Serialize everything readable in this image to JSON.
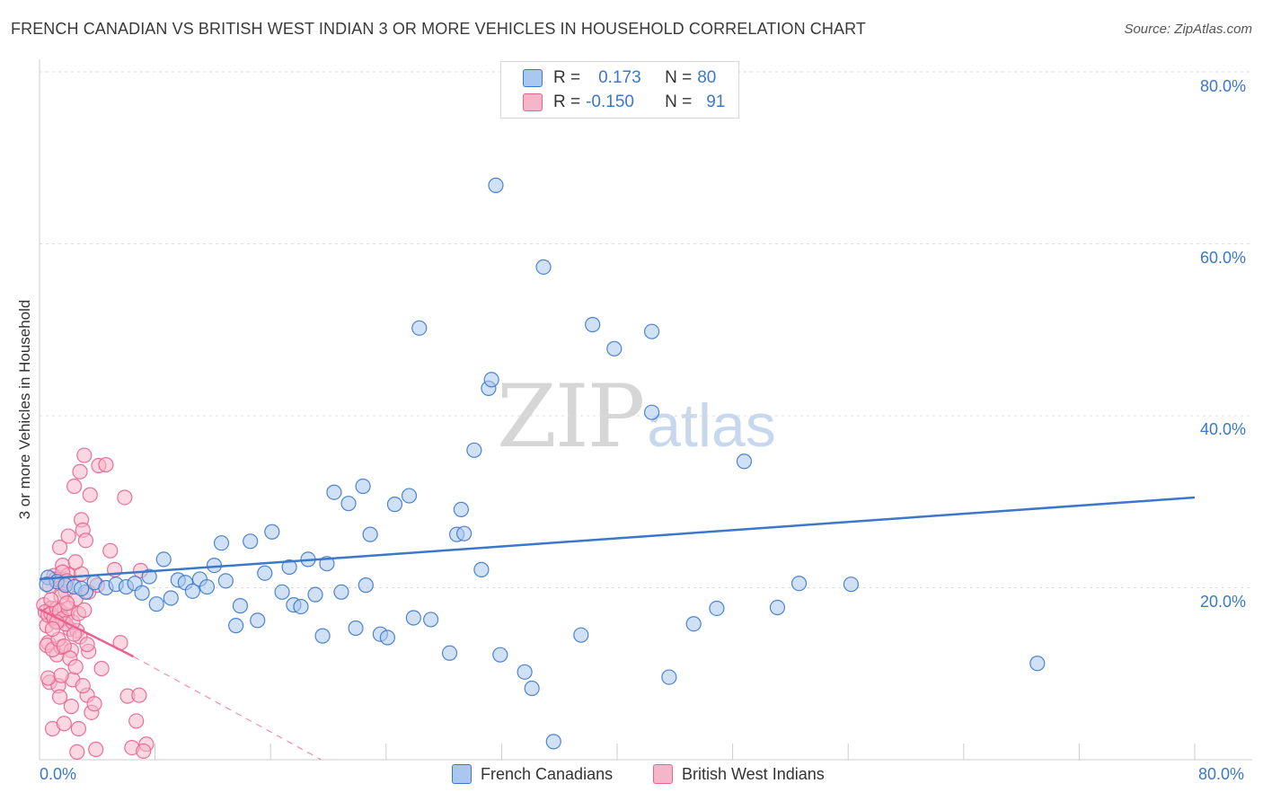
{
  "title": "FRENCH CANADIAN VS BRITISH WEST INDIAN 3 OR MORE VEHICLES IN HOUSEHOLD CORRELATION CHART",
  "source": "Source: ZipAtlas.com",
  "watermark": {
    "zip": "ZIP",
    "atlas": "atlas"
  },
  "colors": {
    "blue": "#3b78c9",
    "blue_fill": "#aac8ef",
    "pink": "#e8628f",
    "pink_fill": "#f6b6c9",
    "grid": "#dddddd"
  },
  "legend": {
    "rows": [
      {
        "r_label": "R =",
        "r_value": "0.173",
        "n_label": "N =",
        "n_value": "80"
      },
      {
        "r_label": "R =",
        "r_value": "-0.150",
        "n_label": "N =",
        "n_value": "91"
      }
    ]
  },
  "bottom_legend": {
    "series1": "French Canadians",
    "series2": "British West Indians"
  },
  "chart_data": {
    "type": "scatter",
    "title": "FRENCH CANADIAN VS BRITISH WEST INDIAN 3 OR MORE VEHICLES IN HOUSEHOLD CORRELATION CHART",
    "xlabel": "",
    "ylabel": "3 or more Vehicles in Household",
    "xlim": [
      0,
      80
    ],
    "ylim": [
      0,
      80
    ],
    "x_tick_labels": [
      "0.0%",
      "80.0%"
    ],
    "y_tick_labels": [
      "20.0%",
      "40.0%",
      "60.0%",
      "80.0%"
    ],
    "y_ticks": [
      20,
      40,
      60,
      80
    ],
    "series": [
      {
        "name": "French Canadians",
        "r": 0.173,
        "n": 80,
        "trend": {
          "x": [
            0,
            80
          ],
          "y": [
            21.0,
            30.5
          ],
          "style": "solid"
        },
        "points": [
          [
            0.6,
            21.2
          ],
          [
            1.2,
            20.7
          ],
          [
            1.8,
            20.3
          ],
          [
            2.4,
            20.1
          ],
          [
            3.2,
            19.5
          ],
          [
            3.8,
            20.6
          ],
          [
            4.6,
            20.0
          ],
          [
            5.3,
            20.4
          ],
          [
            6.0,
            20.1
          ],
          [
            6.6,
            20.5
          ],
          [
            7.1,
            19.4
          ],
          [
            7.6,
            21.3
          ],
          [
            8.1,
            18.1
          ],
          [
            8.6,
            23.3
          ],
          [
            9.1,
            18.8
          ],
          [
            9.6,
            20.9
          ],
          [
            10.1,
            20.6
          ],
          [
            10.6,
            19.6
          ],
          [
            11.1,
            21.0
          ],
          [
            11.6,
            20.1
          ],
          [
            12.1,
            22.6
          ],
          [
            12.6,
            25.2
          ],
          [
            12.9,
            20.8
          ],
          [
            13.6,
            15.6
          ],
          [
            13.9,
            17.9
          ],
          [
            14.6,
            25.4
          ],
          [
            15.1,
            16.2
          ],
          [
            15.6,
            21.7
          ],
          [
            16.1,
            26.5
          ],
          [
            16.8,
            19.5
          ],
          [
            17.3,
            22.4
          ],
          [
            17.6,
            18.0
          ],
          [
            18.1,
            17.8
          ],
          [
            18.6,
            23.3
          ],
          [
            19.1,
            19.2
          ],
          [
            19.6,
            14.4
          ],
          [
            19.9,
            22.8
          ],
          [
            20.4,
            31.1
          ],
          [
            20.9,
            19.5
          ],
          [
            21.4,
            29.8
          ],
          [
            21.9,
            15.3
          ],
          [
            22.4,
            31.8
          ],
          [
            22.6,
            20.3
          ],
          [
            22.9,
            26.2
          ],
          [
            23.6,
            14.6
          ],
          [
            24.1,
            14.2
          ],
          [
            24.6,
            29.7
          ],
          [
            25.6,
            30.7
          ],
          [
            25.9,
            16.5
          ],
          [
            26.3,
            50.2
          ],
          [
            27.1,
            16.3
          ],
          [
            28.4,
            12.4
          ],
          [
            28.9,
            26.2
          ],
          [
            29.2,
            29.1
          ],
          [
            29.4,
            26.3
          ],
          [
            30.1,
            36.0
          ],
          [
            30.6,
            22.1
          ],
          [
            31.1,
            43.2
          ],
          [
            31.3,
            44.2
          ],
          [
            31.6,
            66.8
          ],
          [
            31.9,
            12.2
          ],
          [
            33.6,
            10.2
          ],
          [
            34.1,
            8.3
          ],
          [
            34.9,
            57.3
          ],
          [
            35.6,
            2.1
          ],
          [
            37.5,
            14.5
          ],
          [
            38.3,
            50.6
          ],
          [
            39.8,
            47.8
          ],
          [
            42.4,
            40.4
          ],
          [
            42.4,
            49.8
          ],
          [
            43.6,
            9.6
          ],
          [
            45.3,
            15.8
          ],
          [
            46.9,
            17.6
          ],
          [
            48.8,
            34.7
          ],
          [
            51.1,
            17.7
          ],
          [
            52.6,
            20.5
          ],
          [
            56.2,
            20.4
          ],
          [
            69.1,
            11.2
          ],
          [
            0.5,
            20.4
          ],
          [
            2.9,
            19.9
          ]
        ]
      },
      {
        "name": "British West Indians",
        "r": -0.15,
        "n": 91,
        "trend": {
          "x": [
            0,
            6.5
          ],
          "y": [
            17.5,
            12.0
          ],
          "style": "solid",
          "extension": {
            "x": [
              6.5,
              19.5
            ],
            "y": [
              12.0,
              0.0
            ],
            "style": "dashed"
          }
        },
        "points": [
          [
            0.3,
            18.0
          ],
          [
            0.5,
            15.6
          ],
          [
            0.6,
            13.6
          ],
          [
            0.7,
            9.0
          ],
          [
            0.8,
            17.6
          ],
          [
            0.9,
            3.6
          ],
          [
            1.0,
            21.4
          ],
          [
            1.1,
            16.1
          ],
          [
            1.2,
            12.2
          ],
          [
            1.3,
            8.6
          ],
          [
            1.4,
            24.7
          ],
          [
            1.5,
            13.1
          ],
          [
            1.6,
            22.6
          ],
          [
            1.7,
            20.5
          ],
          [
            1.8,
            19.5
          ],
          [
            1.9,
            16.8
          ],
          [
            2.0,
            21.5
          ],
          [
            2.1,
            15.2
          ],
          [
            2.2,
            12.7
          ],
          [
            2.3,
            9.3
          ],
          [
            2.4,
            31.8
          ],
          [
            2.5,
            18.7
          ],
          [
            2.6,
            15.0
          ],
          [
            2.7,
            3.6
          ],
          [
            2.8,
            14.3
          ],
          [
            2.9,
            27.9
          ],
          [
            3.0,
            26.7
          ],
          [
            3.1,
            35.4
          ],
          [
            3.2,
            25.5
          ],
          [
            3.3,
            7.5
          ],
          [
            3.4,
            19.5
          ],
          [
            3.5,
            30.8
          ],
          [
            3.6,
            5.5
          ],
          [
            3.8,
            6.5
          ],
          [
            4.1,
            34.2
          ],
          [
            4.3,
            10.6
          ],
          [
            4.6,
            34.3
          ],
          [
            4.9,
            24.3
          ],
          [
            5.2,
            22.1
          ],
          [
            5.6,
            13.6
          ],
          [
            5.9,
            30.5
          ],
          [
            6.1,
            7.4
          ],
          [
            6.4,
            1.4
          ],
          [
            6.7,
            4.5
          ],
          [
            7.0,
            22.0
          ],
          [
            0.4,
            17.2
          ],
          [
            0.6,
            16.8
          ],
          [
            0.8,
            17.0
          ],
          [
            1.0,
            16.5
          ],
          [
            1.2,
            17.6
          ],
          [
            1.4,
            17.3
          ],
          [
            1.6,
            16.4
          ],
          [
            1.8,
            15.8
          ],
          [
            2.0,
            17.6
          ],
          [
            0.5,
            13.3
          ],
          [
            0.9,
            12.8
          ],
          [
            1.3,
            14.0
          ],
          [
            1.7,
            13.2
          ],
          [
            2.1,
            11.8
          ],
          [
            2.5,
            10.8
          ],
          [
            0.7,
            20.2
          ],
          [
            1.1,
            21.0
          ],
          [
            1.5,
            19.0
          ],
          [
            1.9,
            18.2
          ],
          [
            2.3,
            16.0
          ],
          [
            2.7,
            17.0
          ],
          [
            3.1,
            17.4
          ],
          [
            3.4,
            12.6
          ],
          [
            3.9,
            1.2
          ],
          [
            2.6,
            0.9
          ],
          [
            7.4,
            1.8
          ],
          [
            0.6,
            9.5
          ],
          [
            1.4,
            7.3
          ],
          [
            2.2,
            6.2
          ],
          [
            3.0,
            8.6
          ],
          [
            6.9,
            7.5
          ],
          [
            7.2,
            1.0
          ],
          [
            1.6,
            21.8
          ],
          [
            2.0,
            26.0
          ],
          [
            2.8,
            33.5
          ],
          [
            1.2,
            16.0
          ],
          [
            0.9,
            15.2
          ],
          [
            2.4,
            14.6
          ],
          [
            4.0,
            20.3
          ],
          [
            1.5,
            9.8
          ],
          [
            3.3,
            13.4
          ],
          [
            2.9,
            21.6
          ],
          [
            0.8,
            18.6
          ],
          [
            1.9,
            20.8
          ],
          [
            2.5,
            23.0
          ],
          [
            1.7,
            4.2
          ]
        ]
      }
    ]
  }
}
